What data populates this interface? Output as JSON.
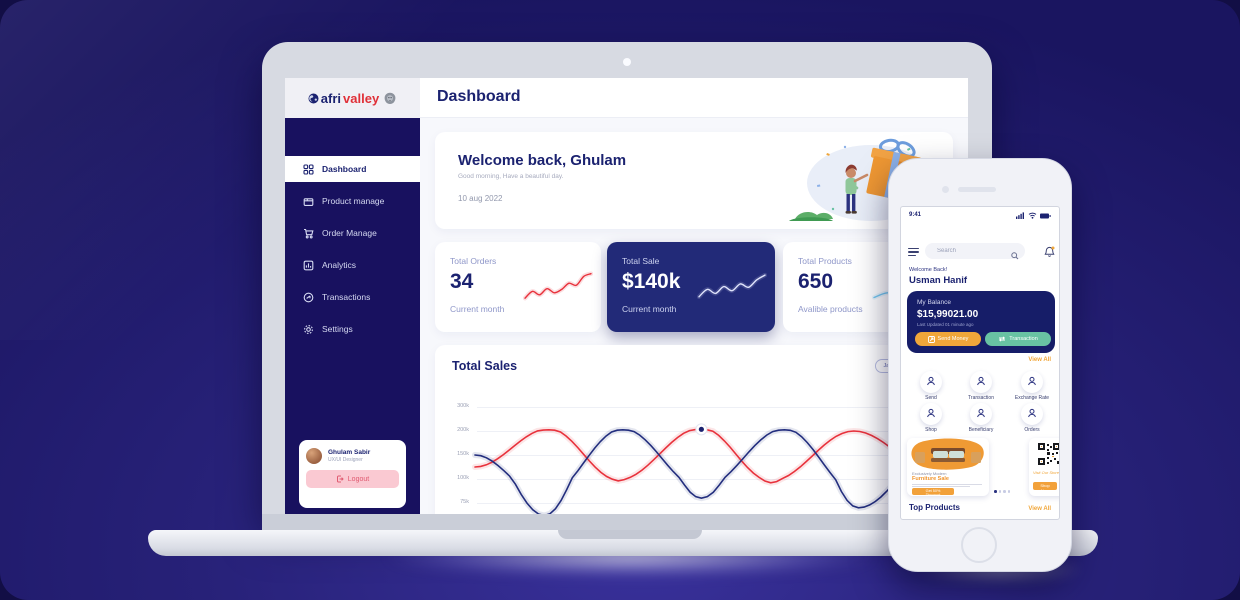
{
  "colors": {
    "background": "#221c74",
    "navy_text": "#1b2270",
    "sidebar_navy": "#18115f",
    "dark_stat_card": "#222a78",
    "accent_red": "#e8323c",
    "accent_orange": "#f0a63a",
    "accent_teal": "#68c2a3",
    "logout_pink": "#fac9d2"
  },
  "laptop": {
    "logo": {
      "prefix": "afri",
      "suffix": "valley"
    },
    "header": {
      "title": "Dashboard"
    },
    "sidebar": {
      "items": [
        {
          "label": "Dashboard",
          "icon": "grid-icon",
          "active": true
        },
        {
          "label": "Product manage",
          "icon": "box-icon",
          "active": false
        },
        {
          "label": "Order Manage",
          "icon": "cart-icon",
          "active": false
        },
        {
          "label": "Analytics",
          "icon": "analytics-icon",
          "active": false
        },
        {
          "label": "Transactions",
          "icon": "transfer-icon",
          "active": false
        },
        {
          "label": "Settings",
          "icon": "gear-icon",
          "active": false
        }
      ],
      "profile": {
        "name": "Ghulam Sabir",
        "role": "UX/UI Designer",
        "logout": "Logout"
      }
    },
    "welcome": {
      "title": "Welcome back, Ghulam",
      "subtitle": "Good morning, Have a beautiful day.",
      "date": "10 aug 2022"
    },
    "stats": [
      {
        "label": "Total Orders",
        "value": "34",
        "caption": "Current month"
      },
      {
        "label": "Total Sale",
        "value": "$140k",
        "caption": "Current month"
      },
      {
        "label": "Total Products",
        "value": "650",
        "caption": "Avalible products"
      }
    ]
  },
  "phone": {
    "status_time": "9:41",
    "search_placeholder": "Search",
    "greeting": "Welcome Back!",
    "user_name": "Usman Hanif",
    "balance": {
      "label": "My Balance",
      "amount": "$15,99021.00",
      "updated": "Last Updated 01 minute ago",
      "send_button": "Send Money",
      "transaction_button": "Transaction"
    },
    "view_all": "View All",
    "actions": [
      {
        "label": "Send",
        "icon": "person-icon"
      },
      {
        "label": "Transaction",
        "icon": "person-icon"
      },
      {
        "label": "Exchange Rate",
        "icon": "person-icon"
      },
      {
        "label": "Shop",
        "icon": "person-icon"
      },
      {
        "label": "Beneficiary",
        "icon": "person-icon"
      },
      {
        "label": "Orders",
        "icon": "person-icon"
      }
    ],
    "promos": [
      {
        "subtitle": "Exclusively Modern",
        "title": "Furniture Sale",
        "button": "Get 50% Discount"
      },
      {
        "script": "Visit Our Store",
        "button": "Shop Now"
      }
    ],
    "top_products": {
      "title": "Top Products",
      "view_all": "View All"
    }
  },
  "chart_data": {
    "type": "line",
    "title": "Total Sales",
    "range_label": "Jan-Dec",
    "grid": true,
    "ytick_labels": [
      "300k",
      "200k",
      "150k",
      "100k",
      "75k"
    ],
    "xtick_labels": [],
    "series": [
      {
        "name": "sales-red",
        "color": "#e8323c",
        "x_frac": [
          0,
          0.16,
          0.31,
          0.49,
          0.64,
          0.82,
          1.0
        ],
        "values_k": [
          125,
          205,
          98,
          207,
          96,
          200,
          115
        ]
      },
      {
        "name": "sales-navy",
        "color": "#232e7e",
        "x_frac": [
          0,
          0.15,
          0.32,
          0.49,
          0.67,
          0.83,
          1.0
        ],
        "values_k": [
          150,
          62,
          205,
          80,
          205,
          70,
          130
        ]
      }
    ],
    "marker": {
      "series": "sales-red",
      "x_frac": 0.49,
      "value_k": 207
    },
    "sparklines": [
      {
        "name": "total-orders-spark",
        "color": "#e8323c",
        "values": [
          20,
          40,
          30,
          48,
          36,
          46,
          64,
          58,
          84,
          92
        ]
      },
      {
        "name": "total-sale-spark",
        "color": "#dfe3fb",
        "values": [
          24,
          46,
          34,
          54,
          42,
          62,
          52,
          74,
          88
        ]
      },
      {
        "name": "total-products-spark",
        "color": "#74c9f2",
        "values": [
          22,
          36,
          30,
          52,
          56,
          78
        ]
      }
    ]
  }
}
